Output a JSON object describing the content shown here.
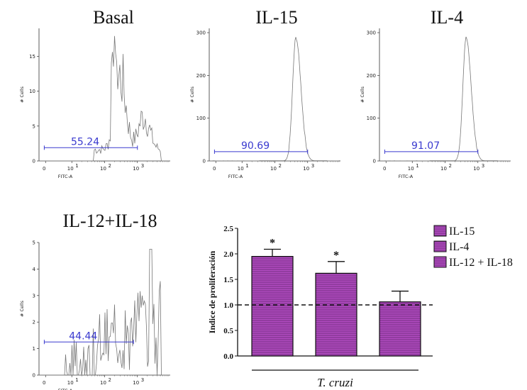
{
  "histograms": [
    {
      "id": "basal",
      "title": "Basal",
      "ylabel": "# Cells",
      "xlabel": "FITC-A",
      "gate_value": "55.24",
      "yticks": [
        "0",
        "5",
        "10",
        "15"
      ],
      "ymax": 19
    },
    {
      "id": "il15",
      "title": "IL-15",
      "ylabel": "# Cells",
      "xlabel": "FITC-A",
      "gate_value": "90.69",
      "yticks": [
        "0",
        "100",
        "200",
        "300"
      ],
      "ymax": 310
    },
    {
      "id": "il4",
      "title": "IL-4",
      "ylabel": "# Cells",
      "xlabel": "FITC-A",
      "gate_value": "91.07",
      "yticks": [
        "0",
        "100",
        "200",
        "300"
      ],
      "ymax": 310
    },
    {
      "id": "il12il18",
      "title": "IL-12+IL-18",
      "ylabel": "# Cells",
      "xlabel": "FITC-A",
      "gate_value": "44.44",
      "yticks": [
        "0",
        "1",
        "2",
        "3",
        "4",
        "5"
      ],
      "ymax": 5
    }
  ],
  "x_tick_labels": [
    "0",
    "10",
    "10",
    "10",
    "10"
  ],
  "x_tick_exponents": [
    "",
    "1",
    "2",
    "3",
    ""
  ],
  "chart_data": {
    "type": "bar",
    "ylabel": "Indice de proliferación",
    "xlabel": "T. cruzi",
    "ylim": [
      0,
      2.5
    ],
    "yticks": [
      "0.0",
      "0.5",
      "1.0",
      "1.5",
      "2.0",
      "2.5"
    ],
    "reference_line": 1.0,
    "series": [
      {
        "name": "IL-15",
        "value": 1.95,
        "error": 0.14,
        "significance": "*"
      },
      {
        "name": "IL-4",
        "value": 1.62,
        "error": 0.23,
        "significance": "*"
      },
      {
        "name": "IL-12 + IL-18",
        "value": 1.06,
        "error": 0.21,
        "significance": ""
      }
    ],
    "bar_color": "#b04bbf",
    "legend": "right"
  }
}
